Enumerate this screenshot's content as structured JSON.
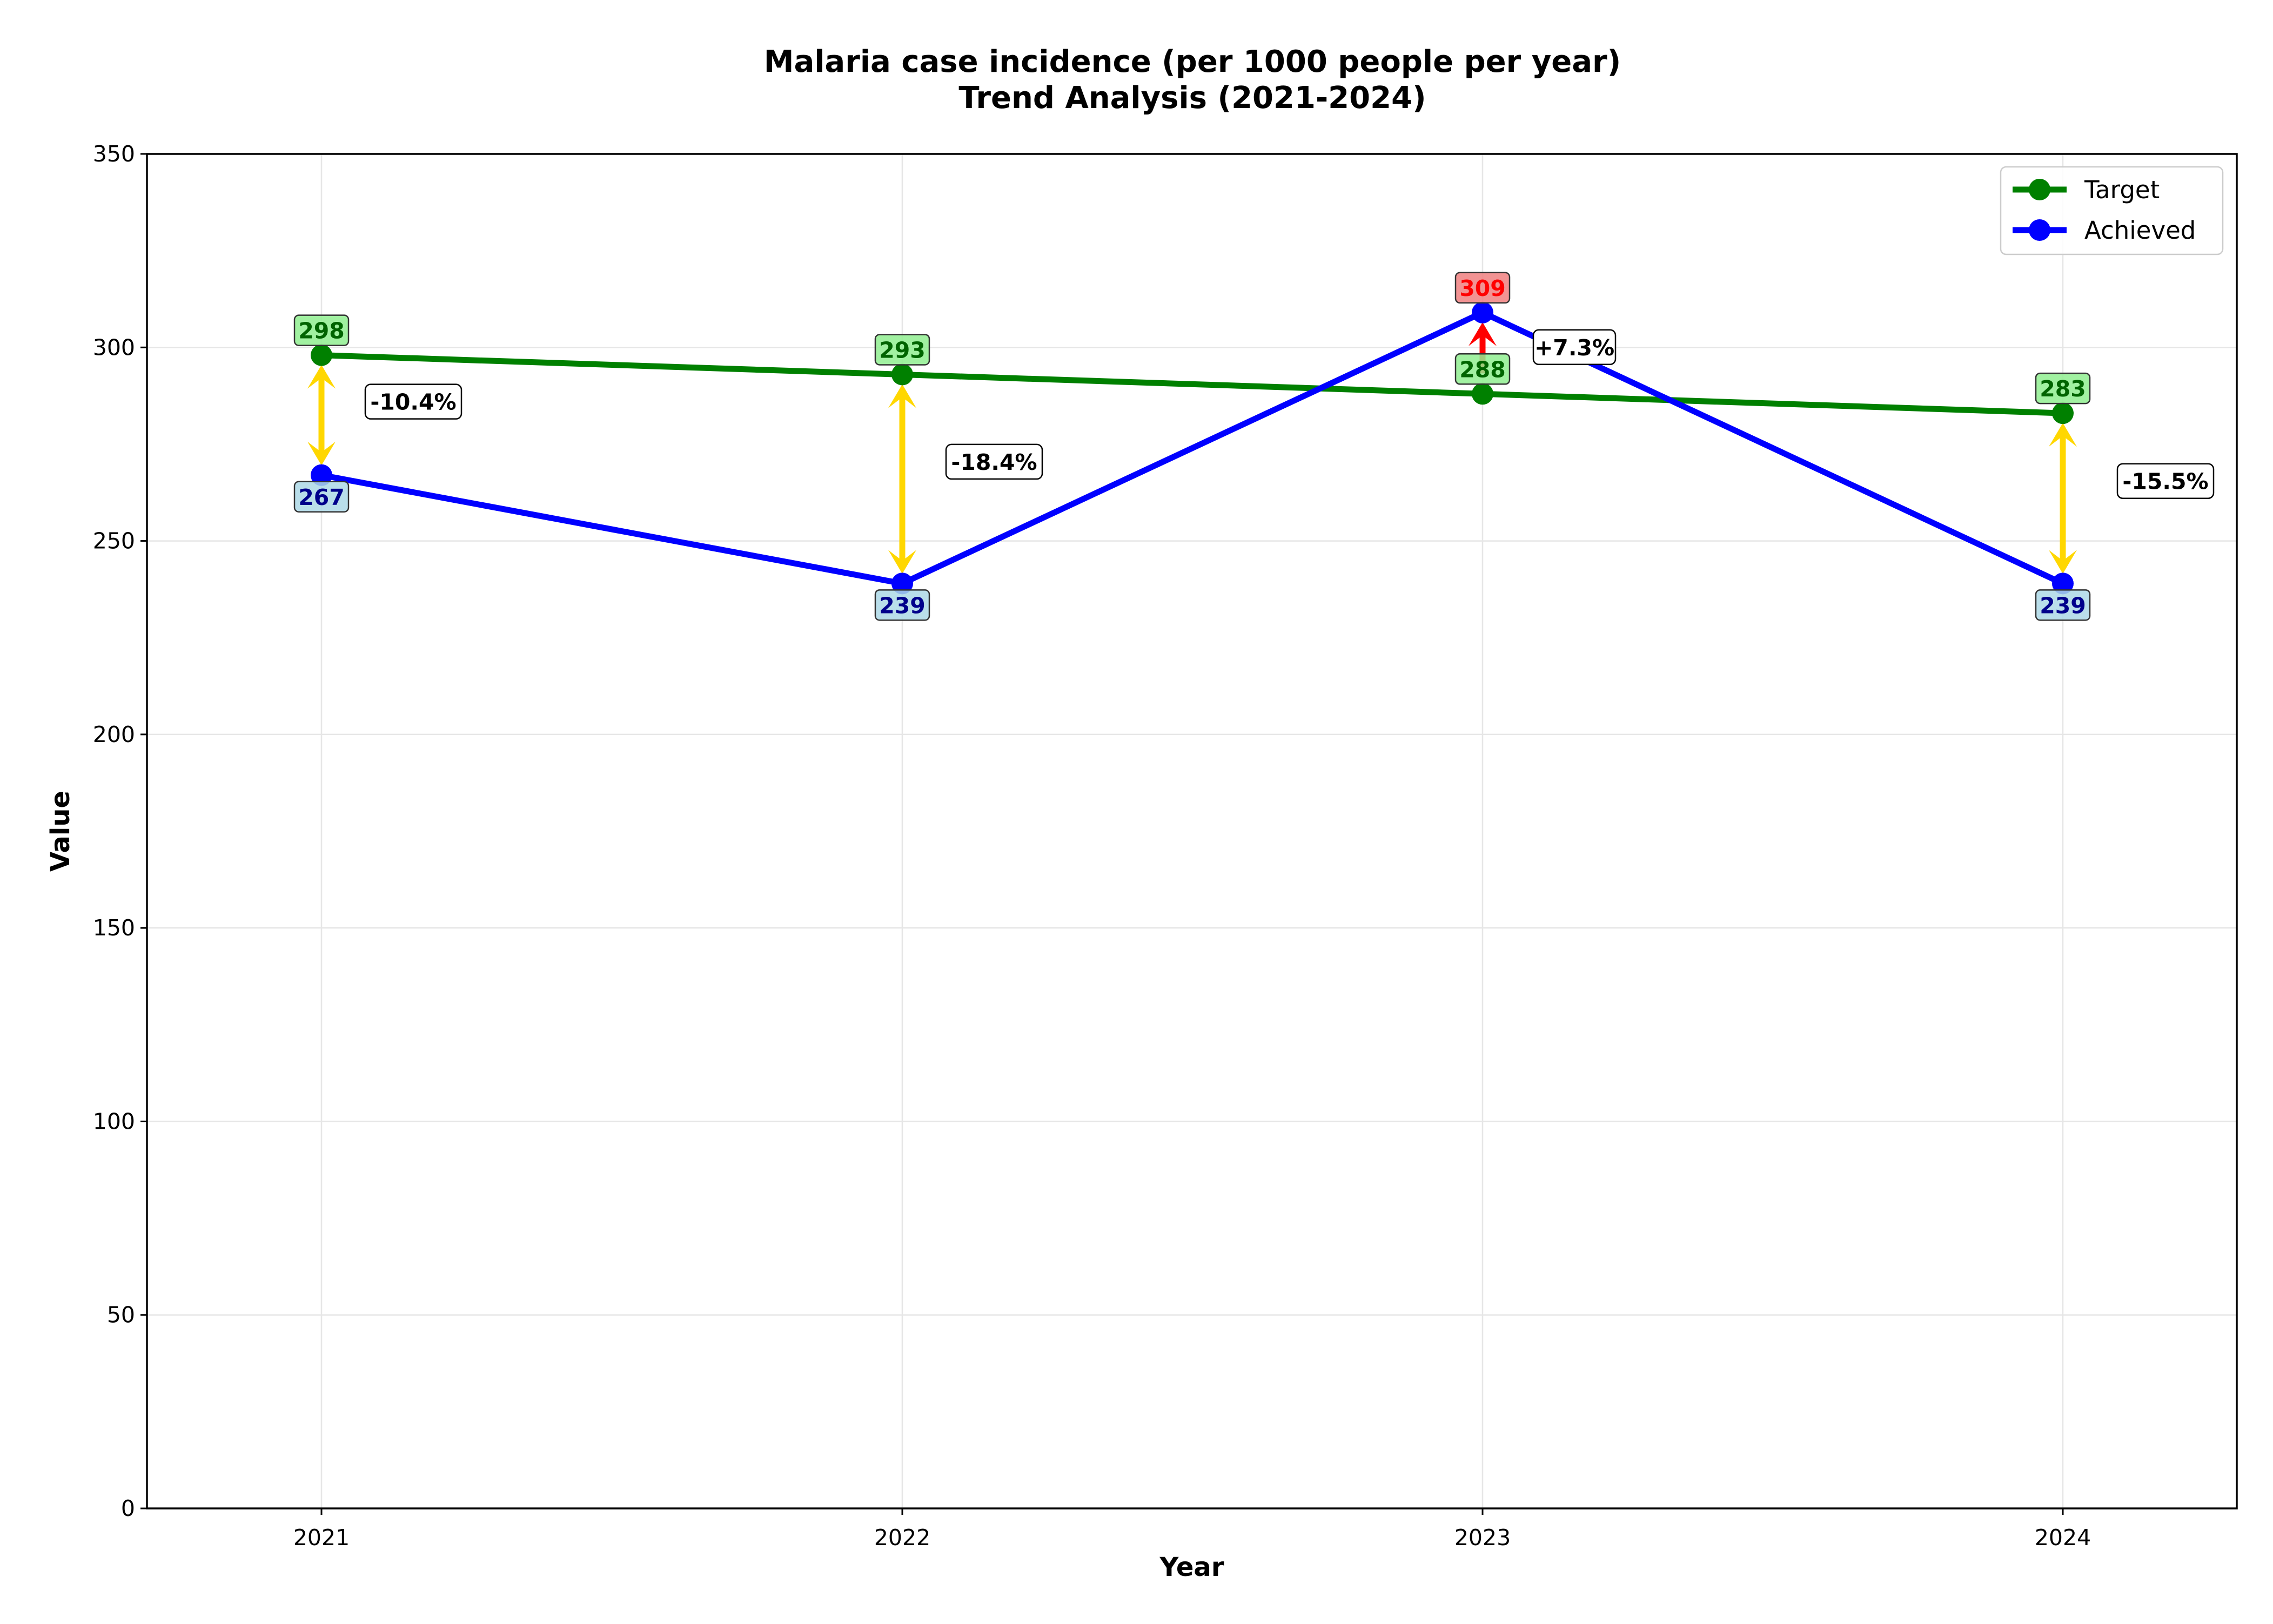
{
  "chart_data": {
    "type": "line",
    "title": "Malaria case incidence (per 1000 people per year)",
    "subtitle": "Trend Analysis (2021-2024)",
    "xlabel": "Year",
    "ylabel": "Value",
    "categories": [
      "2021",
      "2022",
      "2023",
      "2024"
    ],
    "ylim": [
      0,
      350
    ],
    "yticks": [
      0,
      50,
      100,
      150,
      200,
      250,
      300,
      350
    ],
    "grid": true,
    "legend_position": "top-right",
    "series": [
      {
        "name": "Target",
        "values": [
          298,
          293,
          288,
          283
        ],
        "color": "#008000",
        "label_bg": "#90ee90",
        "label_color": "#006400"
      },
      {
        "name": "Achieved",
        "values": [
          267,
          239,
          309,
          239
        ],
        "color": "#0000ff",
        "label_bg": "#add8e6",
        "label_color": "#00008b"
      }
    ],
    "differences": [
      "-10.4%",
      "-18.4%",
      "+7.3%",
      "-15.5%"
    ],
    "colors": {
      "shortfall_arrow": "#ffd700",
      "exceed_arrow": "#ff0000",
      "exceed_label_bg": "#f08080",
      "exceed_label_text": "#ff0000"
    }
  }
}
